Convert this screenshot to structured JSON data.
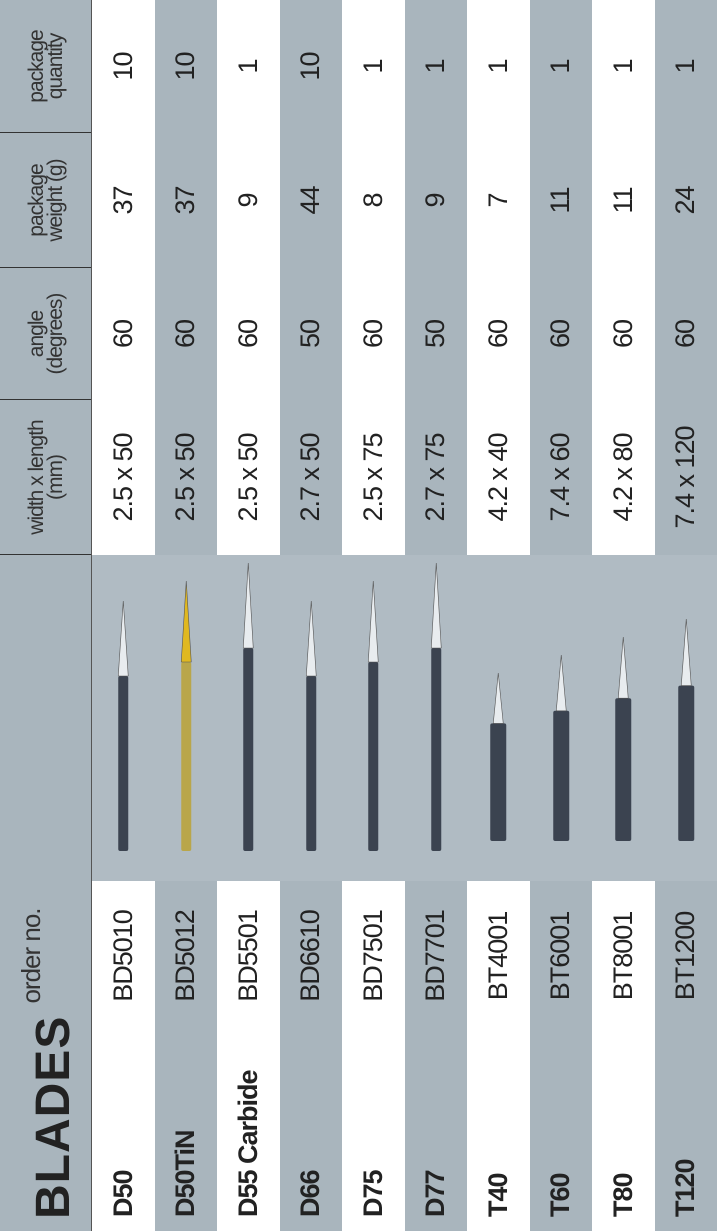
{
  "header": {
    "title": "BLADES",
    "columns": [
      [
        "order no."
      ],
      [
        "width x length",
        "(mm)"
      ],
      [
        "angle",
        "(degrees)"
      ],
      [
        "package",
        "weight (g)"
      ],
      [
        "package",
        "quantity"
      ]
    ]
  },
  "table": {
    "rows": [
      [
        "D50",
        "BD5010",
        "2.5 x 50",
        60,
        37,
        10
      ],
      [
        "D50TiN",
        "BD5012",
        "2.5 x 50",
        60,
        37,
        10
      ],
      [
        "D55 Carbide",
        "BD5501",
        "2.5 x 50",
        60,
        9,
        1
      ],
      [
        "D66",
        "BD6610",
        "2.7 x 50",
        50,
        44,
        10
      ],
      [
        "D75",
        "BD7501",
        "2.5 x 75",
        60,
        8,
        1
      ],
      [
        "D77",
        "BD7701",
        "2.7 x 75",
        50,
        9,
        1
      ],
      [
        "T40",
        "BT4001",
        "4.2 x 40",
        60,
        7,
        1
      ],
      [
        "T60",
        "BT6001",
        "7.4 x 60",
        60,
        11,
        1
      ],
      [
        "T80",
        "BT8001",
        "4.2 x 80",
        60,
        11,
        1
      ],
      [
        "T120",
        "BT1200",
        "7.4 x 120",
        60,
        24,
        1
      ]
    ]
  }
}
